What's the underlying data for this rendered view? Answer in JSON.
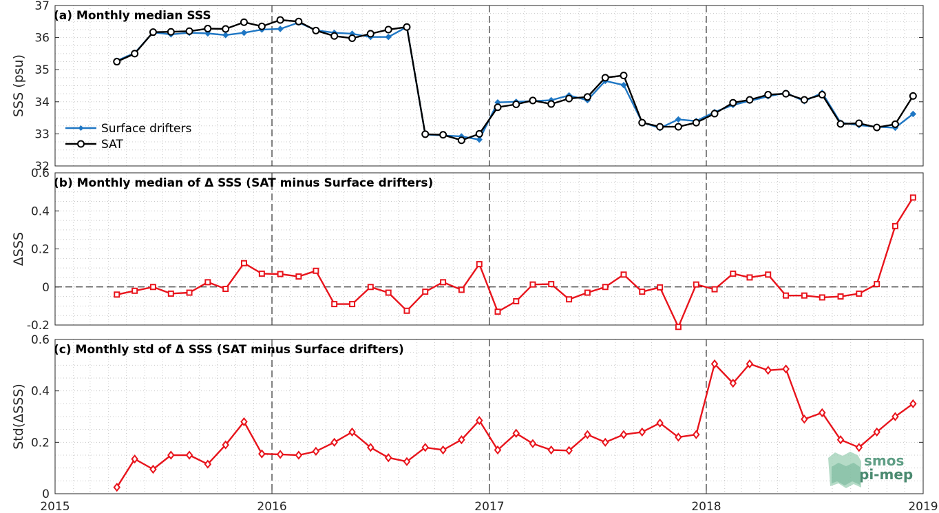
{
  "x_ticks": [
    "2015",
    "2016",
    "2017",
    "2018",
    "2019"
  ],
  "logo": {
    "line1": "smos",
    "line2": "pi-mep"
  },
  "colors": {
    "drifters": "#1f77c4",
    "sat": "#000000",
    "delta": "#e8141c"
  },
  "chart_data": [
    {
      "type": "line",
      "title": "(a) Monthly median SSS",
      "xlabel": "",
      "ylabel": "SSS (psu)",
      "xlim": [
        "2015-01-01",
        "2019-01-01"
      ],
      "ylim": [
        32,
        37
      ],
      "y_ticks": [
        "32",
        "33",
        "34",
        "35",
        "36",
        "37"
      ],
      "grid": true,
      "legend": "lower-left",
      "x": [
        "2015-04",
        "2015-05",
        "2015-06",
        "2015-07",
        "2015-08",
        "2015-09",
        "2015-10",
        "2015-11",
        "2015-12",
        "2016-01",
        "2016-02",
        "2016-03",
        "2016-04",
        "2016-05",
        "2016-06",
        "2016-07",
        "2016-08",
        "2016-09",
        "2016-10",
        "2016-11",
        "2016-12",
        "2017-01",
        "2017-02",
        "2017-03",
        "2017-04",
        "2017-05",
        "2017-06",
        "2017-07",
        "2017-08",
        "2017-09",
        "2017-10",
        "2017-11",
        "2017-12",
        "2018-01",
        "2018-02",
        "2018-03",
        "2018-04",
        "2018-05",
        "2018-06",
        "2018-07",
        "2018-08",
        "2018-09",
        "2018-10",
        "2018-11",
        "2018-12"
      ],
      "series": [
        {
          "name": "Surface drifters",
          "marker": "diamond-filled",
          "values": [
            35.28,
            35.52,
            36.16,
            36.1,
            36.15,
            36.13,
            36.08,
            36.15,
            36.25,
            36.27,
            36.47,
            36.23,
            36.15,
            36.12,
            36.02,
            36.02,
            36.33,
            32.98,
            32.95,
            32.92,
            32.82,
            33.98,
            34.0,
            34.02,
            34.05,
            34.2,
            34.05,
            34.65,
            34.52,
            33.36,
            33.18,
            33.45,
            33.4,
            33.68,
            33.9,
            34.03,
            34.17,
            34.28,
            34.02,
            34.28,
            33.35,
            33.27,
            33.22,
            33.19,
            33.62
          ]
        },
        {
          "name": "SAT",
          "marker": "circle",
          "values": [
            35.25,
            35.5,
            36.17,
            36.18,
            36.2,
            36.28,
            36.27,
            36.48,
            36.35,
            36.55,
            36.5,
            36.22,
            36.05,
            35.98,
            36.12,
            36.25,
            36.33,
            32.99,
            32.97,
            32.8,
            33.0,
            33.83,
            33.92,
            34.04,
            33.93,
            34.1,
            34.15,
            34.75,
            34.82,
            33.35,
            33.22,
            33.22,
            33.35,
            33.63,
            33.97,
            34.06,
            34.22,
            34.25,
            34.06,
            34.22,
            33.31,
            33.33,
            33.2,
            33.3,
            34.18
          ]
        }
      ]
    },
    {
      "type": "line",
      "title": "(b) Monthly median of Δ SSS (SAT minus Surface drifters)",
      "xlabel": "",
      "ylabel": "ΔSSS",
      "xlim": [
        "2015-01-01",
        "2019-01-01"
      ],
      "ylim": [
        -0.2,
        0.6
      ],
      "y_ticks": [
        "-0.2",
        "0",
        "0.2",
        "0.4",
        "0.6"
      ],
      "grid": true,
      "zero_line": true,
      "x": [
        "2015-04",
        "2015-05",
        "2015-06",
        "2015-07",
        "2015-08",
        "2015-09",
        "2015-10",
        "2015-11",
        "2015-12",
        "2016-01",
        "2016-02",
        "2016-03",
        "2016-04",
        "2016-05",
        "2016-06",
        "2016-07",
        "2016-08",
        "2016-09",
        "2016-10",
        "2016-11",
        "2016-12",
        "2017-01",
        "2017-02",
        "2017-03",
        "2017-04",
        "2017-05",
        "2017-06",
        "2017-07",
        "2017-08",
        "2017-09",
        "2017-10",
        "2017-11",
        "2017-12",
        "2018-01",
        "2018-02",
        "2018-03",
        "2018-04",
        "2018-05",
        "2018-06",
        "2018-07",
        "2018-08",
        "2018-09",
        "2018-10",
        "2018-11",
        "2018-12"
      ],
      "series": [
        {
          "name": "",
          "marker": "square",
          "values": [
            -0.04,
            -0.02,
            0.0,
            -0.035,
            -0.03,
            0.025,
            -0.01,
            0.125,
            0.07,
            0.068,
            0.055,
            0.085,
            -0.09,
            -0.09,
            0.0,
            -0.03,
            -0.125,
            -0.025,
            0.025,
            -0.015,
            0.12,
            -0.13,
            -0.075,
            0.013,
            0.015,
            -0.065,
            -0.03,
            0.0,
            0.065,
            -0.025,
            -0.002,
            -0.21,
            0.013,
            -0.012,
            0.07,
            0.05,
            0.065,
            -0.045,
            -0.045,
            -0.055,
            -0.05,
            -0.035,
            0.015,
            0.32,
            0.47
          ]
        }
      ]
    },
    {
      "type": "line",
      "title": "(c) Monthly std of Δ SSS (SAT minus Surface drifters)",
      "xlabel": "",
      "ylabel": "Std(ΔSSS)",
      "xlim": [
        "2015-01-01",
        "2019-01-01"
      ],
      "ylim": [
        0,
        0.6
      ],
      "y_ticks": [
        "0",
        "0.2",
        "0.4",
        "0.6"
      ],
      "grid": true,
      "x": [
        "2015-04",
        "2015-05",
        "2015-06",
        "2015-07",
        "2015-08",
        "2015-09",
        "2015-10",
        "2015-11",
        "2015-12",
        "2016-01",
        "2016-02",
        "2016-03",
        "2016-04",
        "2016-05",
        "2016-06",
        "2016-07",
        "2016-08",
        "2016-09",
        "2016-10",
        "2016-11",
        "2016-12",
        "2017-01",
        "2017-02",
        "2017-03",
        "2017-04",
        "2017-05",
        "2017-06",
        "2017-07",
        "2017-08",
        "2017-09",
        "2017-10",
        "2017-11",
        "2017-12",
        "2018-01",
        "2018-02",
        "2018-03",
        "2018-04",
        "2018-05",
        "2018-06",
        "2018-07",
        "2018-08",
        "2018-09",
        "2018-10",
        "2018-11",
        "2018-12"
      ],
      "series": [
        {
          "name": "",
          "marker": "diamond",
          "values": [
            0.025,
            0.135,
            0.095,
            0.15,
            0.15,
            0.115,
            0.19,
            0.28,
            0.155,
            0.153,
            0.15,
            0.165,
            0.2,
            0.24,
            0.18,
            0.14,
            0.125,
            0.18,
            0.17,
            0.21,
            0.285,
            0.17,
            0.235,
            0.195,
            0.17,
            0.168,
            0.23,
            0.2,
            0.23,
            0.24,
            0.275,
            0.22,
            0.23,
            0.505,
            0.43,
            0.505,
            0.48,
            0.485,
            0.29,
            0.315,
            0.21,
            0.18,
            0.24,
            0.3,
            0.35
          ]
        }
      ]
    }
  ]
}
